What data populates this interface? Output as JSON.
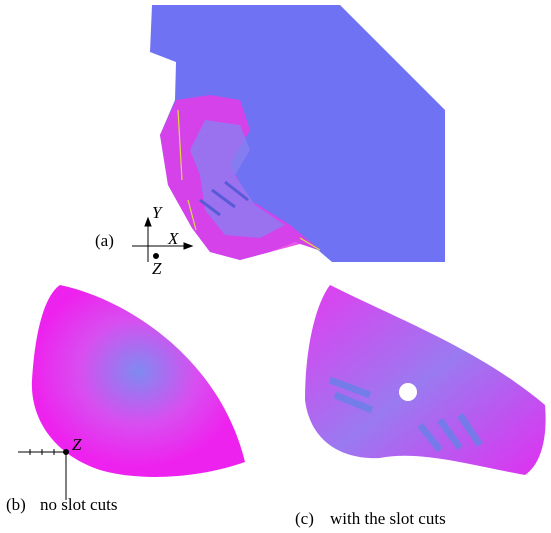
{
  "panels": [
    {
      "label": "(a)",
      "axes": [
        "Y",
        "X",
        "Z"
      ]
    },
    {
      "label": "(b)",
      "caption": "no slot cuts",
      "axis": "Z"
    },
    {
      "label": "(c)",
      "caption": "with the slot cuts"
    }
  ]
}
